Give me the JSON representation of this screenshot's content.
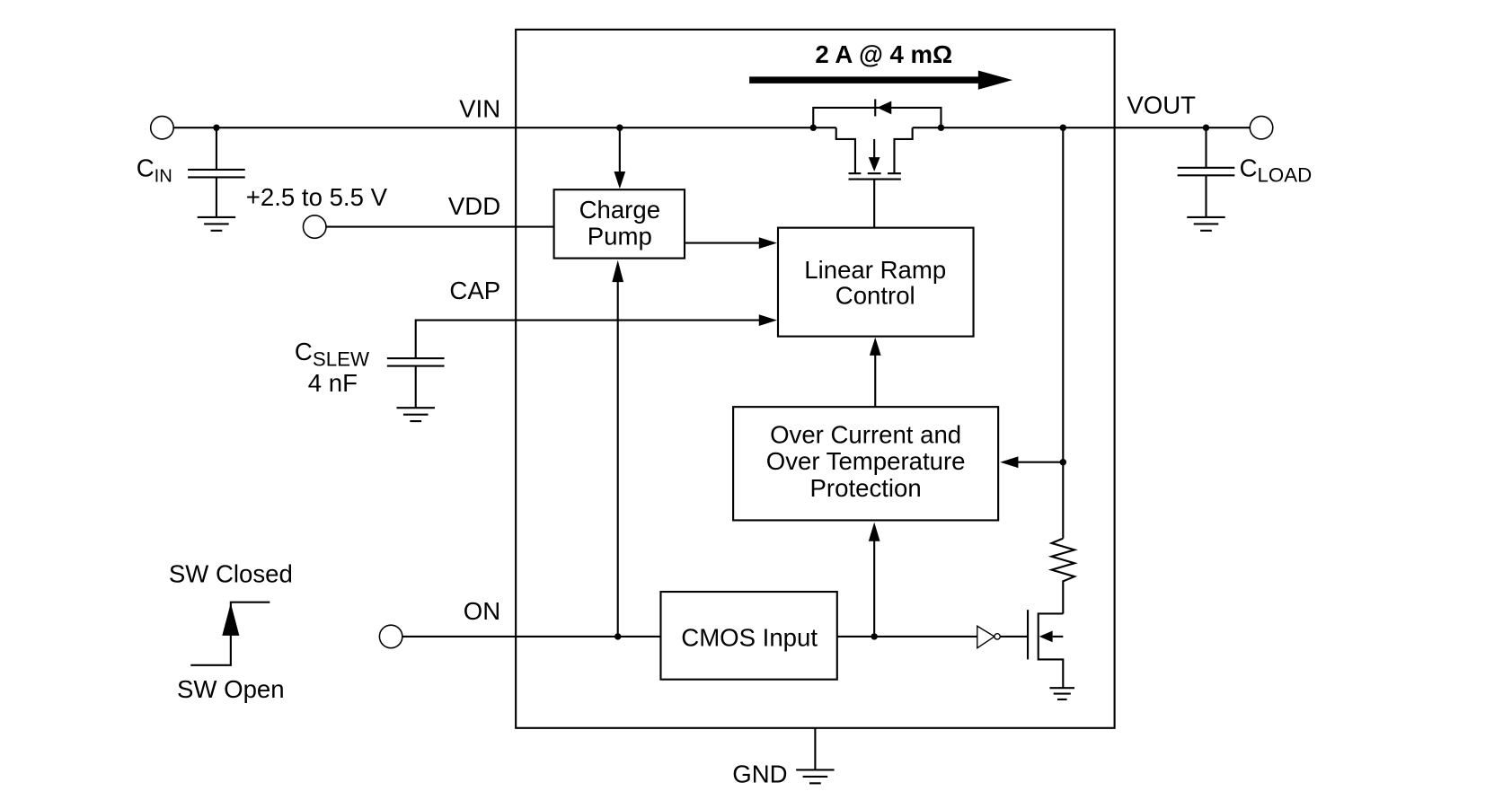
{
  "current_label": "2 A @ 4 mΩ",
  "pins": {
    "vin": "VIN",
    "vdd": "VDD",
    "cap": "CAP",
    "on": "ON",
    "vout": "VOUT",
    "gnd": "GND"
  },
  "supply_range": "+2.5 to 5.5 V",
  "components": {
    "cin": {
      "main": "C",
      "sub": "IN"
    },
    "cload": {
      "main": "C",
      "sub": "LOAD"
    },
    "cslew": {
      "main": "C",
      "sub": "SLEW",
      "value": "4 nF"
    }
  },
  "blocks": {
    "charge_pump": [
      "Charge",
      "Pump"
    ],
    "linear_ramp": [
      "Linear Ramp",
      "Control"
    ],
    "protection": [
      "Over Current and",
      "Over Temperature",
      "Protection"
    ],
    "cmos_input": "CMOS Input"
  },
  "switch_legend": {
    "closed": "SW Closed",
    "open": "SW Open"
  }
}
